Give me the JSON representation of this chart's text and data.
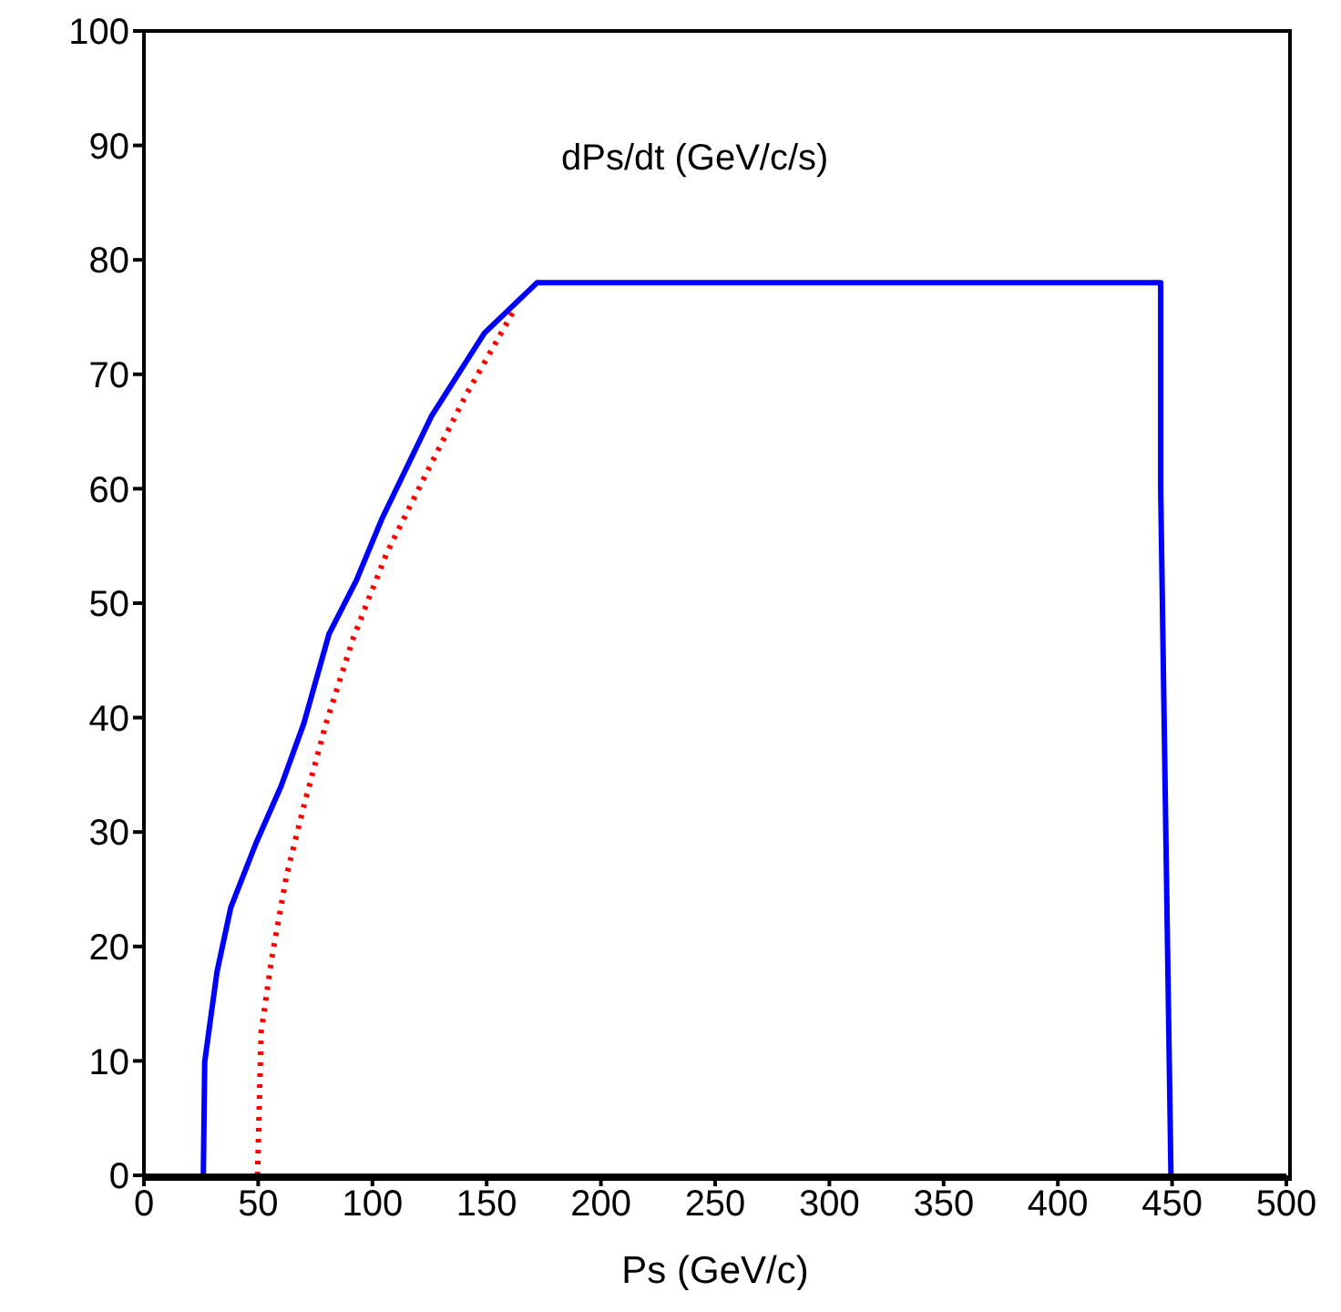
{
  "chart_data": {
    "type": "line",
    "xlabel": "Ps (GeV/c)",
    "annotations": [
      "dPs/dt (GeV/c/s)"
    ],
    "xlim": [
      0,
      500
    ],
    "xticks": [
      0,
      50,
      100,
      150,
      200,
      250,
      300,
      350,
      400,
      450,
      500
    ],
    "ylim": [
      0,
      100
    ],
    "yticks": [
      0,
      10,
      20,
      30,
      40,
      50,
      60,
      70,
      80,
      90,
      100
    ],
    "marker": "none",
    "series": [
      {
        "color": "#0000ff",
        "line_style": "solid",
        "x": [
          26,
          26.6,
          28.7,
          32,
          38,
          49,
          60,
          70,
          81,
          93,
          104,
          126,
          149,
          172,
          445,
          445,
          449.5
        ],
        "values": [
          0,
          9.9,
          13,
          17.8,
          23.4,
          29,
          34,
          39.5,
          47.3,
          52,
          57.3,
          66.4,
          73.6,
          78,
          78,
          60,
          0
        ]
      },
      {
        "color": "#ff0000",
        "line_style": "dotted",
        "x": [
          49.7,
          51.3,
          55.8,
          62.5,
          70.4,
          79.7,
          91.7,
          106.3,
          125,
          141,
          162
        ],
        "values": [
          0,
          12.5,
          18.8,
          26.3,
          32.6,
          39.5,
          47,
          54.4,
          61.9,
          68.2,
          75.6
        ]
      }
    ]
  }
}
